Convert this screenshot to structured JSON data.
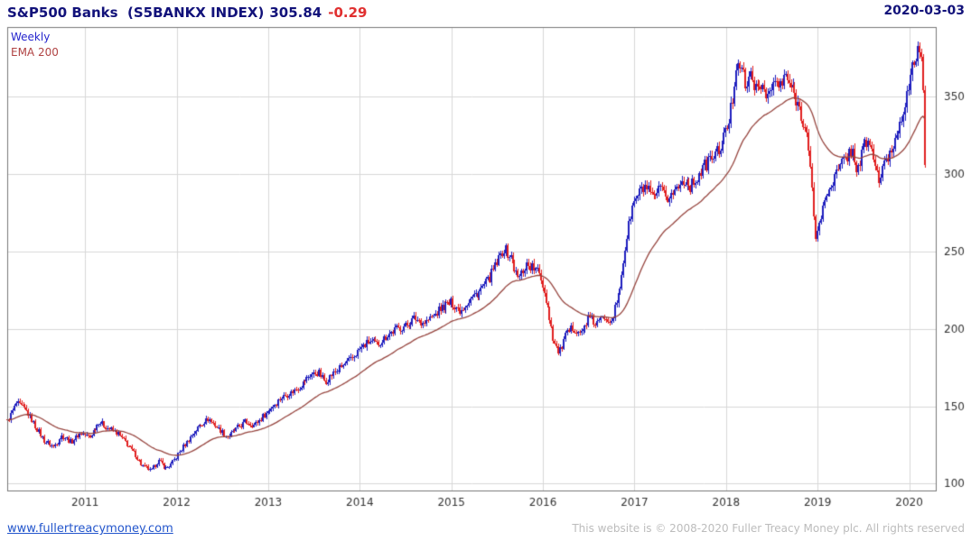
{
  "header": {
    "title": "S&P500 Banks  (S5BANKX INDEX)",
    "last_price": "305.84",
    "change": "-0.29",
    "date": "2020-03-03"
  },
  "legend": {
    "series1": "Weekly",
    "series2": "EMA 200"
  },
  "footer": {
    "link": "www.fullertreacymoney.com",
    "copyright": "This website is © 2008-2020 Fuller Treacy Money plc. All rights reserved"
  },
  "colors": {
    "title_text": "#12127a",
    "change_negative": "#e03030",
    "candle_up": "#1f1fbe",
    "candle_down": "#e01f1f",
    "ema_line": "#96443e",
    "grid": "#d7d7d7",
    "plot_border": "#777777",
    "axis_text": "#333333",
    "link": "#2255cc",
    "copyright_text": "#bcbcbc"
  },
  "chart_data": {
    "type": "candlestick",
    "title": "S&P500 Banks (S5BANKX INDEX)",
    "frequency": "Weekly",
    "overlay": "EMA 200",
    "last_price": 305.84,
    "change": -0.29,
    "as_of_date": "2020-03-03",
    "x_ticks": [
      2011,
      2012,
      2013,
      2014,
      2015,
      2016,
      2017,
      2018,
      2019,
      2020
    ],
    "y_ticks": [
      100,
      150,
      200,
      250,
      300,
      350
    ],
    "xlim": [
      2010.15,
      2020.3
    ],
    "ylim": [
      95,
      395
    ],
    "grid": true,
    "legend_position": "top-left",
    "ema_period_weeks": 40,
    "price_anchors": [
      [
        2010.15,
        140
      ],
      [
        2010.25,
        152
      ],
      [
        2010.35,
        148
      ],
      [
        2010.45,
        138
      ],
      [
        2010.55,
        128
      ],
      [
        2010.65,
        124
      ],
      [
        2010.75,
        131
      ],
      [
        2010.85,
        127
      ],
      [
        2010.95,
        133
      ],
      [
        2011.05,
        130
      ],
      [
        2011.15,
        140
      ],
      [
        2011.25,
        136
      ],
      [
        2011.35,
        133
      ],
      [
        2011.45,
        126
      ],
      [
        2011.55,
        119
      ],
      [
        2011.62,
        112
      ],
      [
        2011.72,
        108
      ],
      [
        2011.8,
        115
      ],
      [
        2011.88,
        110
      ],
      [
        2011.95,
        113
      ],
      [
        2012.05,
        122
      ],
      [
        2012.15,
        130
      ],
      [
        2012.25,
        138
      ],
      [
        2012.35,
        142
      ],
      [
        2012.45,
        136
      ],
      [
        2012.55,
        130
      ],
      [
        2012.65,
        135
      ],
      [
        2012.75,
        140
      ],
      [
        2012.85,
        138
      ],
      [
        2012.95,
        144
      ],
      [
        2013.05,
        150
      ],
      [
        2013.15,
        156
      ],
      [
        2013.25,
        159
      ],
      [
        2013.35,
        163
      ],
      [
        2013.45,
        170
      ],
      [
        2013.55,
        172
      ],
      [
        2013.62,
        166
      ],
      [
        2013.72,
        172
      ],
      [
        2013.82,
        176
      ],
      [
        2013.92,
        181
      ],
      [
        2014.0,
        187
      ],
      [
        2014.1,
        192
      ],
      [
        2014.2,
        190
      ],
      [
        2014.3,
        196
      ],
      [
        2014.4,
        200
      ],
      [
        2014.5,
        202
      ],
      [
        2014.6,
        207
      ],
      [
        2014.7,
        204
      ],
      [
        2014.8,
        208
      ],
      [
        2014.9,
        214
      ],
      [
        2015.0,
        217
      ],
      [
        2015.1,
        212
      ],
      [
        2015.2,
        219
      ],
      [
        2015.3,
        224
      ],
      [
        2015.4,
        231
      ],
      [
        2015.5,
        243
      ],
      [
        2015.57,
        252
      ],
      [
        2015.65,
        246
      ],
      [
        2015.73,
        232
      ],
      [
        2015.82,
        242
      ],
      [
        2015.9,
        239
      ],
      [
        2015.97,
        235
      ],
      [
        2016.05,
        215
      ],
      [
        2016.12,
        192
      ],
      [
        2016.18,
        184
      ],
      [
        2016.25,
        196
      ],
      [
        2016.33,
        201
      ],
      [
        2016.42,
        197
      ],
      [
        2016.5,
        207
      ],
      [
        2016.58,
        203
      ],
      [
        2016.67,
        208
      ],
      [
        2016.75,
        206
      ],
      [
        2016.83,
        222
      ],
      [
        2016.9,
        252
      ],
      [
        2016.97,
        278
      ],
      [
        2017.05,
        288
      ],
      [
        2017.12,
        292
      ],
      [
        2017.2,
        283
      ],
      [
        2017.28,
        290
      ],
      [
        2017.35,
        284
      ],
      [
        2017.45,
        290
      ],
      [
        2017.55,
        297
      ],
      [
        2017.62,
        292
      ],
      [
        2017.7,
        299
      ],
      [
        2017.8,
        308
      ],
      [
        2017.9,
        314
      ],
      [
        2017.97,
        322
      ],
      [
        2018.03,
        333
      ],
      [
        2018.08,
        352
      ],
      [
        2018.12,
        376
      ],
      [
        2018.17,
        368
      ],
      [
        2018.22,
        355
      ],
      [
        2018.28,
        366
      ],
      [
        2018.33,
        352
      ],
      [
        2018.4,
        358
      ],
      [
        2018.47,
        350
      ],
      [
        2018.53,
        360
      ],
      [
        2018.6,
        356
      ],
      [
        2018.65,
        364
      ],
      [
        2018.7,
        357
      ],
      [
        2018.77,
        348
      ],
      [
        2018.83,
        338
      ],
      [
        2018.88,
        326
      ],
      [
        2018.93,
        295
      ],
      [
        2018.98,
        258
      ],
      [
        2019.03,
        272
      ],
      [
        2019.1,
        288
      ],
      [
        2019.17,
        296
      ],
      [
        2019.24,
        304
      ],
      [
        2019.3,
        310
      ],
      [
        2019.37,
        316
      ],
      [
        2019.43,
        302
      ],
      [
        2019.5,
        318
      ],
      [
        2019.56,
        322
      ],
      [
        2019.62,
        308
      ],
      [
        2019.67,
        296
      ],
      [
        2019.73,
        306
      ],
      [
        2019.8,
        315
      ],
      [
        2019.87,
        327
      ],
      [
        2019.93,
        340
      ],
      [
        2020.0,
        356
      ],
      [
        2020.05,
        372
      ],
      [
        2020.1,
        384
      ],
      [
        2020.14,
        372
      ],
      [
        2020.17,
        305.84
      ]
    ]
  }
}
